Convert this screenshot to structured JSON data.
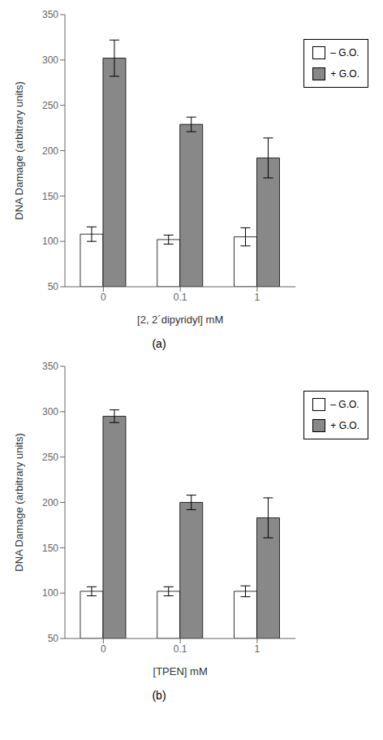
{
  "chart_data": [
    {
      "type": "bar",
      "title": "(a)",
      "xlabel": "[2, 2´dipyridyl] mM",
      "ylabel": "DNA Damage (arbitrary units)",
      "categories": [
        "0",
        "0.1",
        "1"
      ],
      "series": [
        {
          "name": "– G.O.",
          "color": "#ffffff",
          "values": [
            108,
            102,
            105
          ],
          "errors": [
            8,
            5,
            10
          ]
        },
        {
          "name": "+ G.O.",
          "color": "#888888",
          "values": [
            302,
            229,
            192
          ],
          "errors": [
            20,
            8,
            22
          ]
        }
      ],
      "ylim": [
        50,
        350
      ],
      "yticks": [
        50,
        100,
        150,
        200,
        250,
        300,
        350
      ],
      "legend": "right"
    },
    {
      "type": "bar",
      "title": "(b)",
      "xlabel": "[TPEN] mM",
      "ylabel": "DNA Damage (arbitrary units)",
      "categories": [
        "0",
        "0.1",
        "1"
      ],
      "series": [
        {
          "name": "– G.O.",
          "color": "#ffffff",
          "values": [
            102,
            102,
            102
          ],
          "errors": [
            5,
            5,
            6
          ]
        },
        {
          "name": "+ G.O.",
          "color": "#888888",
          "values": [
            295,
            200,
            183
          ],
          "errors": [
            7,
            8,
            22
          ]
        }
      ],
      "ylim": [
        50,
        350
      ],
      "yticks": [
        50,
        100,
        150,
        200,
        250,
        300,
        350
      ],
      "legend": "right"
    }
  ]
}
